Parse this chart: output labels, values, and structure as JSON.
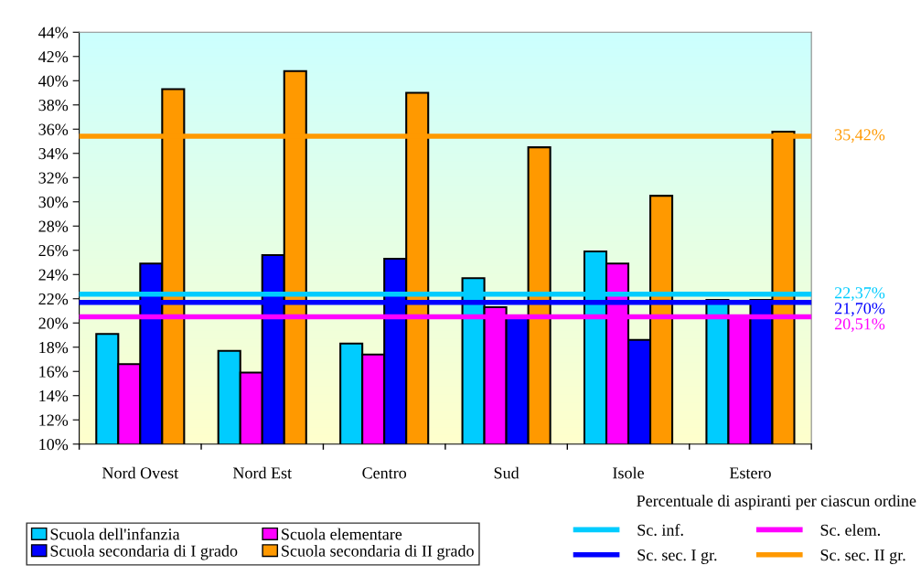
{
  "chart_data": {
    "type": "bar",
    "categories": [
      "Nord Ovest",
      "Nord Est",
      "Centro",
      "Sud",
      "Isole",
      "Estero"
    ],
    "xlabel": "Percentuale di aspiranti per ciascun ordine",
    "series": [
      {
        "name": "Scuola dell'infanzia",
        "color": "#00ccff",
        "values": [
          19.1,
          17.7,
          18.3,
          23.7,
          25.9,
          21.9
        ]
      },
      {
        "name": "Scuola elementare",
        "color": "#ff00ff",
        "values": [
          16.6,
          15.9,
          17.4,
          21.3,
          24.9,
          20.5
        ]
      },
      {
        "name": "Scuola secondaria di I grado",
        "color": "#0000ff",
        "values": [
          24.9,
          25.6,
          25.3,
          20.4,
          18.6,
          21.9
        ]
      },
      {
        "name": "Scuola secondaria di II grado",
        "color": "#ff9900",
        "values": [
          39.3,
          40.8,
          39.0,
          34.5,
          30.5,
          35.8
        ]
      }
    ],
    "ylim": [
      10,
      44
    ],
    "yticks": [
      {
        "value": 10,
        "label": "10%"
      },
      {
        "value": 12,
        "label": "12%"
      },
      {
        "value": 14,
        "label": "14%"
      },
      {
        "value": 16,
        "label": "16%"
      },
      {
        "value": 18,
        "label": "18%"
      },
      {
        "value": 20,
        "label": "20%"
      },
      {
        "value": 22,
        "label": "22%"
      },
      {
        "value": 24,
        "label": "24%"
      },
      {
        "value": 26,
        "label": "26%"
      },
      {
        "value": 28,
        "label": "28%"
      },
      {
        "value": 30,
        "label": "30%"
      },
      {
        "value": 32,
        "label": "32%"
      },
      {
        "value": 34,
        "label": "34%"
      },
      {
        "value": 36,
        "label": "36%"
      },
      {
        "value": 38,
        "label": "38%"
      },
      {
        "value": 40,
        "label": "40%"
      },
      {
        "value": 42,
        "label": "42%"
      },
      {
        "value": 44,
        "label": "44%"
      }
    ],
    "ref_lines": [
      {
        "axis": "y",
        "value": 22.37,
        "label": "Sc. inf.",
        "color": "#00ccff"
      },
      {
        "axis": "y",
        "value": 20.51,
        "label": "Sc. elem.",
        "color": "#ff00ff"
      },
      {
        "axis": "y",
        "value": 21.7,
        "label": "Sc. sec. I gr.",
        "color": "#0000ff"
      },
      {
        "axis": "y",
        "value": 35.42,
        "label": "Sc. sec. II gr.",
        "color": "#ff9900"
      }
    ],
    "annotations": [
      "22,37%",
      "20,51%",
      "21,70%",
      "35,42%"
    ],
    "grid": false,
    "legend": "bottom"
  }
}
